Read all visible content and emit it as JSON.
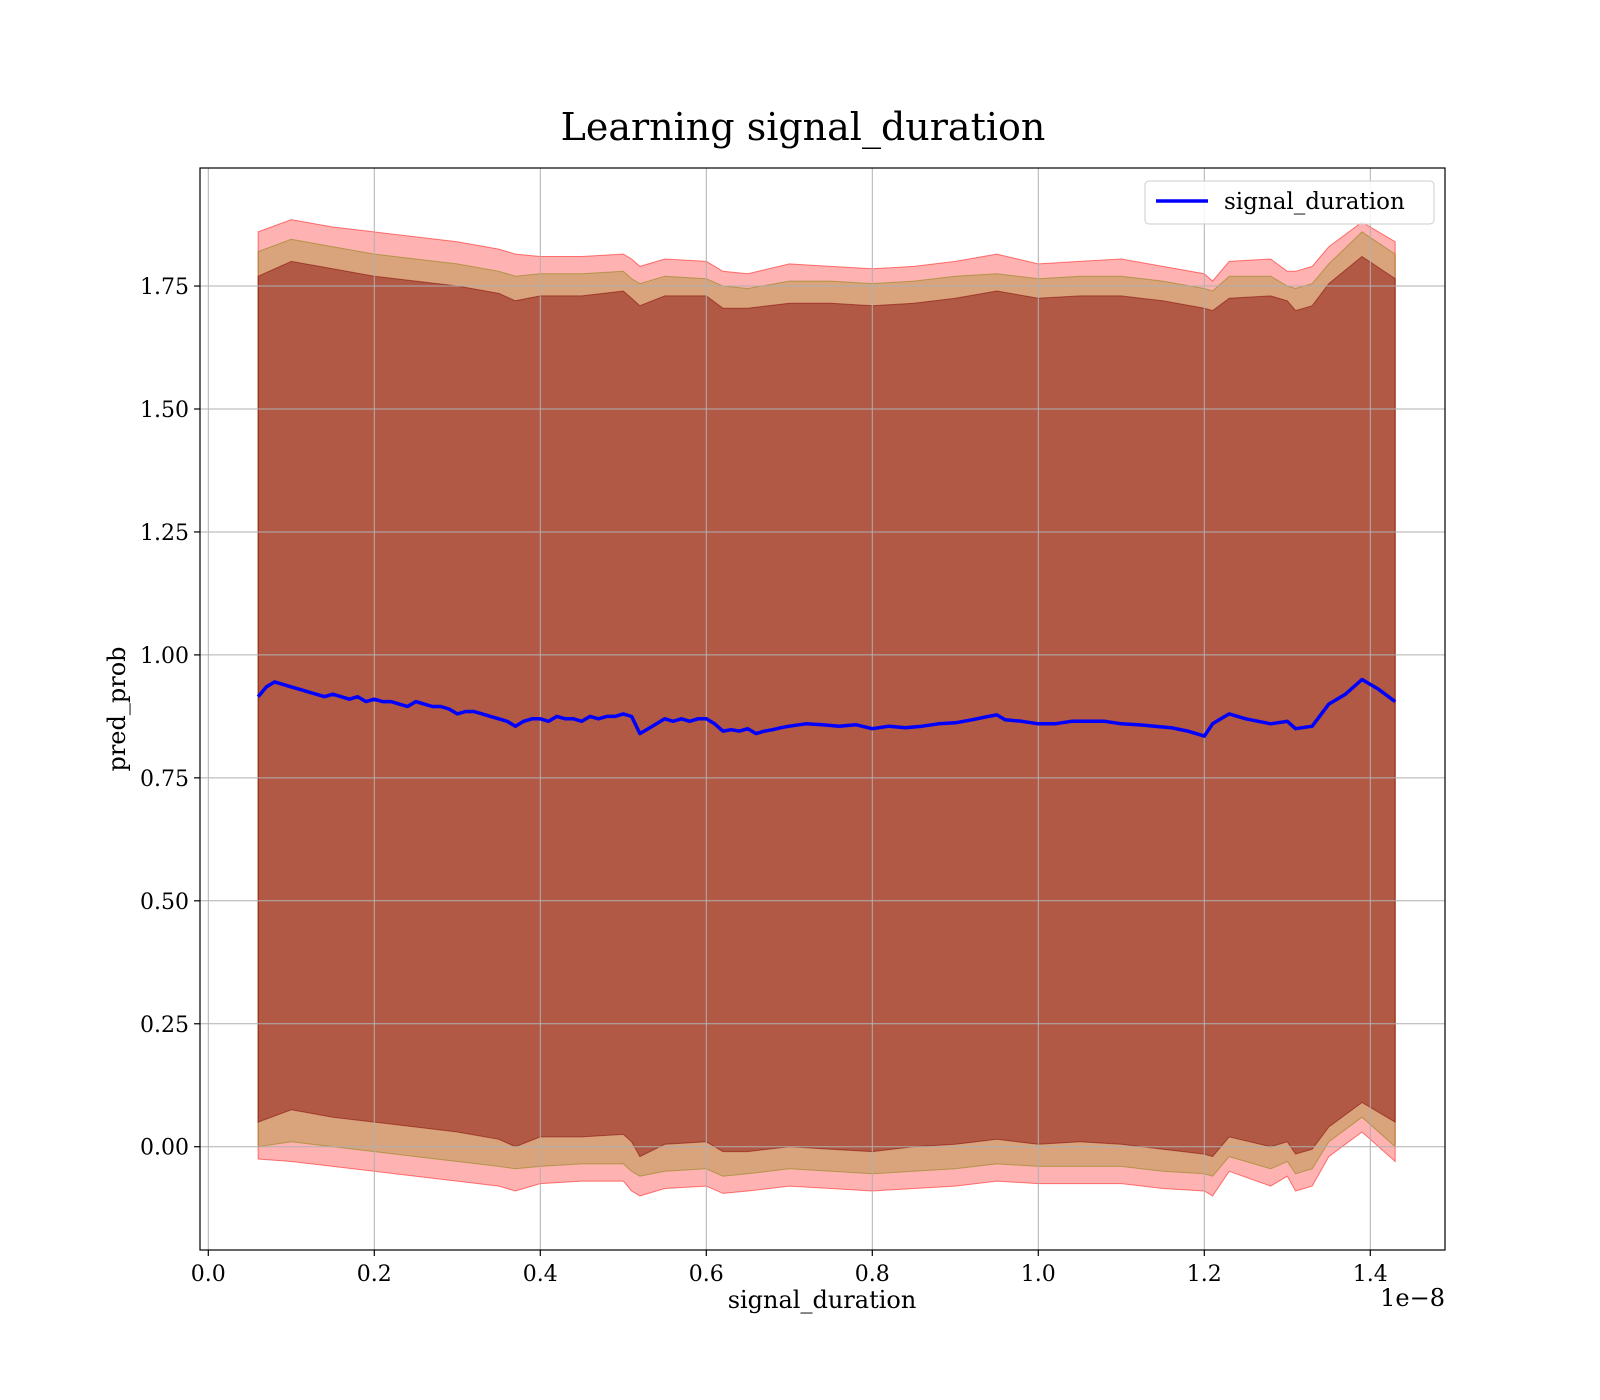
{
  "chart_data": {
    "type": "line",
    "title": "Learning signal_duration",
    "xlabel": "signal_duration",
    "ylabel": "pred_prob",
    "x_offset_text": "1e−8",
    "xlim": [
      -0.01,
      1.49
    ],
    "ylim": [
      -0.21,
      1.99
    ],
    "x_ticks": [
      0.0,
      0.2,
      0.4,
      0.6,
      0.8,
      1.0,
      1.2,
      1.4
    ],
    "x_tick_labels": [
      "0.0",
      "0.2",
      "0.4",
      "0.6",
      "0.8",
      "1.0",
      "1.2",
      "1.4"
    ],
    "y_ticks": [
      0.0,
      0.25,
      0.5,
      0.75,
      1.0,
      1.25,
      1.5,
      1.75
    ],
    "y_tick_labels": [
      "0.00",
      "0.25",
      "0.50",
      "0.75",
      "1.00",
      "1.25",
      "1.50",
      "1.75"
    ],
    "grid": true,
    "legend_position": "top-right",
    "colors": {
      "line": "#0000ff",
      "outer_band": "#ff0000",
      "middle_band": "#808000",
      "inner_band": "#800000"
    },
    "series": [
      {
        "name": "signal_duration",
        "kind": "line",
        "x": [
          0.06,
          0.07,
          0.08,
          0.09,
          0.1,
          0.11,
          0.12,
          0.13,
          0.14,
          0.15,
          0.16,
          0.17,
          0.18,
          0.19,
          0.2,
          0.21,
          0.22,
          0.23,
          0.24,
          0.25,
          0.26,
          0.27,
          0.28,
          0.29,
          0.3,
          0.31,
          0.32,
          0.33,
          0.34,
          0.35,
          0.36,
          0.37,
          0.38,
          0.39,
          0.4,
          0.41,
          0.42,
          0.43,
          0.44,
          0.45,
          0.46,
          0.47,
          0.48,
          0.49,
          0.5,
          0.51,
          0.52,
          0.53,
          0.54,
          0.55,
          0.56,
          0.57,
          0.58,
          0.59,
          0.6,
          0.61,
          0.62,
          0.63,
          0.64,
          0.65,
          0.66,
          0.67,
          0.68,
          0.69,
          0.7,
          0.72,
          0.74,
          0.76,
          0.78,
          0.8,
          0.82,
          0.84,
          0.86,
          0.88,
          0.9,
          0.92,
          0.94,
          0.95,
          0.96,
          0.98,
          1.0,
          1.02,
          1.04,
          1.06,
          1.08,
          1.1,
          1.12,
          1.14,
          1.16,
          1.18,
          1.2,
          1.21,
          1.22,
          1.23,
          1.25,
          1.28,
          1.3,
          1.31,
          1.33,
          1.35,
          1.37,
          1.39,
          1.41,
          1.43
        ],
        "values": [
          0.915,
          0.935,
          0.945,
          0.94,
          0.935,
          0.93,
          0.925,
          0.92,
          0.915,
          0.92,
          0.915,
          0.91,
          0.915,
          0.905,
          0.91,
          0.905,
          0.905,
          0.9,
          0.895,
          0.905,
          0.9,
          0.895,
          0.895,
          0.89,
          0.88,
          0.885,
          0.885,
          0.88,
          0.875,
          0.87,
          0.865,
          0.855,
          0.865,
          0.87,
          0.87,
          0.865,
          0.875,
          0.87,
          0.87,
          0.865,
          0.875,
          0.87,
          0.875,
          0.875,
          0.88,
          0.875,
          0.84,
          0.85,
          0.86,
          0.87,
          0.865,
          0.87,
          0.865,
          0.87,
          0.87,
          0.86,
          0.845,
          0.848,
          0.845,
          0.85,
          0.84,
          0.845,
          0.848,
          0.852,
          0.855,
          0.86,
          0.858,
          0.855,
          0.858,
          0.85,
          0.855,
          0.852,
          0.855,
          0.86,
          0.862,
          0.868,
          0.875,
          0.878,
          0.868,
          0.865,
          0.86,
          0.86,
          0.865,
          0.865,
          0.865,
          0.86,
          0.858,
          0.855,
          0.852,
          0.845,
          0.835,
          0.86,
          0.87,
          0.88,
          0.87,
          0.86,
          0.865,
          0.85,
          0.855,
          0.9,
          0.92,
          0.95,
          0.93,
          0.905
        ]
      },
      {
        "kind": "band",
        "x": [
          0.06,
          0.1,
          0.15,
          0.2,
          0.25,
          0.3,
          0.35,
          0.37,
          0.4,
          0.45,
          0.5,
          0.51,
          0.52,
          0.55,
          0.6,
          0.62,
          0.65,
          0.7,
          0.75,
          0.8,
          0.85,
          0.9,
          0.95,
          1.0,
          1.05,
          1.1,
          1.15,
          1.2,
          1.21,
          1.23,
          1.28,
          1.3,
          1.31,
          1.33,
          1.35,
          1.39,
          1.43
        ],
        "upper": [
          1.86,
          1.885,
          1.87,
          1.86,
          1.85,
          1.84,
          1.825,
          1.815,
          1.81,
          1.81,
          1.815,
          1.805,
          1.79,
          1.805,
          1.8,
          1.78,
          1.775,
          1.795,
          1.79,
          1.785,
          1.79,
          1.8,
          1.815,
          1.795,
          1.8,
          1.805,
          1.79,
          1.775,
          1.76,
          1.8,
          1.805,
          1.78,
          1.78,
          1.79,
          1.83,
          1.88,
          1.84
        ],
        "lower": [
          -0.025,
          -0.03,
          -0.04,
          -0.05,
          -0.06,
          -0.07,
          -0.08,
          -0.09,
          -0.075,
          -0.07,
          -0.07,
          -0.09,
          -0.1,
          -0.085,
          -0.08,
          -0.095,
          -0.09,
          -0.08,
          -0.085,
          -0.09,
          -0.085,
          -0.08,
          -0.07,
          -0.075,
          -0.075,
          -0.075,
          -0.085,
          -0.09,
          -0.1,
          -0.05,
          -0.08,
          -0.06,
          -0.09,
          -0.08,
          -0.02,
          0.03,
          -0.03
        ]
      },
      {
        "kind": "band",
        "x": [
          0.06,
          0.1,
          0.15,
          0.2,
          0.25,
          0.3,
          0.35,
          0.37,
          0.4,
          0.45,
          0.5,
          0.51,
          0.52,
          0.55,
          0.6,
          0.62,
          0.65,
          0.7,
          0.75,
          0.8,
          0.85,
          0.9,
          0.95,
          1.0,
          1.05,
          1.1,
          1.15,
          1.2,
          1.21,
          1.23,
          1.28,
          1.3,
          1.31,
          1.33,
          1.35,
          1.39,
          1.43
        ],
        "upper": [
          1.82,
          1.845,
          1.83,
          1.815,
          1.805,
          1.795,
          1.78,
          1.77,
          1.775,
          1.775,
          1.78,
          1.765,
          1.755,
          1.77,
          1.765,
          1.75,
          1.745,
          1.76,
          1.76,
          1.755,
          1.76,
          1.77,
          1.775,
          1.765,
          1.77,
          1.77,
          1.76,
          1.745,
          1.74,
          1.77,
          1.77,
          1.75,
          1.745,
          1.755,
          1.795,
          1.86,
          1.815
        ],
        "lower": [
          0.0,
          0.01,
          0.0,
          -0.01,
          -0.02,
          -0.03,
          -0.04,
          -0.045,
          -0.04,
          -0.035,
          -0.035,
          -0.05,
          -0.06,
          -0.05,
          -0.045,
          -0.06,
          -0.055,
          -0.045,
          -0.05,
          -0.055,
          -0.05,
          -0.045,
          -0.035,
          -0.04,
          -0.04,
          -0.04,
          -0.05,
          -0.055,
          -0.06,
          -0.02,
          -0.045,
          -0.03,
          -0.055,
          -0.045,
          0.01,
          0.06,
          0.0
        ]
      },
      {
        "kind": "band",
        "x": [
          0.06,
          0.1,
          0.15,
          0.2,
          0.25,
          0.3,
          0.35,
          0.37,
          0.4,
          0.45,
          0.5,
          0.51,
          0.52,
          0.55,
          0.6,
          0.62,
          0.65,
          0.7,
          0.75,
          0.8,
          0.85,
          0.9,
          0.95,
          1.0,
          1.05,
          1.1,
          1.15,
          1.2,
          1.21,
          1.23,
          1.28,
          1.3,
          1.31,
          1.33,
          1.35,
          1.39,
          1.43
        ],
        "upper": [
          1.77,
          1.8,
          1.785,
          1.77,
          1.76,
          1.75,
          1.735,
          1.72,
          1.73,
          1.73,
          1.74,
          1.725,
          1.71,
          1.73,
          1.73,
          1.705,
          1.705,
          1.715,
          1.715,
          1.71,
          1.715,
          1.725,
          1.74,
          1.725,
          1.73,
          1.73,
          1.72,
          1.705,
          1.7,
          1.725,
          1.73,
          1.72,
          1.7,
          1.71,
          1.755,
          1.81,
          1.765
        ],
        "lower": [
          0.05,
          0.075,
          0.06,
          0.05,
          0.04,
          0.03,
          0.015,
          0.0,
          0.02,
          0.02,
          0.025,
          0.01,
          -0.02,
          0.005,
          0.01,
          -0.01,
          -0.01,
          0.0,
          -0.005,
          -0.01,
          0.0,
          0.005,
          0.015,
          0.005,
          0.01,
          0.005,
          -0.005,
          -0.015,
          -0.02,
          0.02,
          0.0,
          0.01,
          -0.015,
          -0.005,
          0.04,
          0.09,
          0.05
        ]
      }
    ]
  }
}
